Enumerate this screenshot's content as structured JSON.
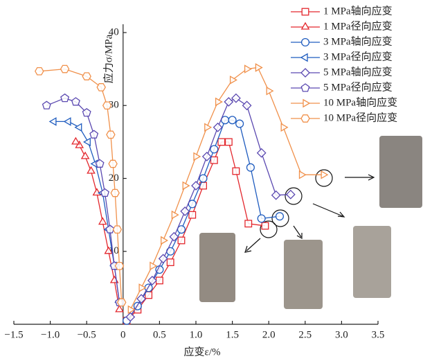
{
  "chart_data": {
    "type": "line",
    "xlabel": "应变ε/%",
    "ylabel": "应力σ/MPa",
    "xlim": [
      -1.5,
      3.5
    ],
    "ylim": [
      0,
      40
    ],
    "xticks": [
      {
        "value": -1.5,
        "label": "−1.5"
      },
      {
        "value": -1,
        "label": "−1.0"
      },
      {
        "value": -0.5,
        "label": "−0.5"
      },
      0,
      0.5,
      {
        "value": 1,
        "label": "1.0"
      },
      1.5,
      {
        "value": 2,
        "label": "2.0"
      },
      2.5,
      {
        "value": 3,
        "label": "3.0"
      },
      3.5
    ],
    "yticks": [
      10,
      20,
      30,
      40
    ],
    "series": [
      {
        "name": "1 MPa轴向应变",
        "color": "#e3262c",
        "marker": "square",
        "x": [
          0.05,
          0.2,
          0.35,
          0.5,
          0.65,
          0.8,
          0.95,
          1.1,
          1.25,
          1.35,
          1.45,
          1.55,
          1.72,
          1.95
        ],
        "values": [
          0.5,
          2,
          4,
          6,
          8.5,
          11.5,
          15,
          19,
          22.5,
          25,
          25,
          21,
          13.8,
          13.5
        ]
      },
      {
        "name": "1 MPa径向应变",
        "color": "#e3262c",
        "marker": "triangle",
        "x": [
          -0.05,
          -0.12,
          -0.2,
          -0.28,
          -0.36,
          -0.44,
          -0.52,
          -0.6,
          -0.65
        ],
        "values": [
          2,
          6,
          10,
          14,
          18,
          21,
          23,
          24.5,
          25
        ]
      },
      {
        "name": "3 MPa轴向应变",
        "color": "#1f5cbf",
        "marker": "circle",
        "x": [
          0.05,
          0.2,
          0.35,
          0.5,
          0.65,
          0.8,
          0.95,
          1.1,
          1.25,
          1.4,
          1.5,
          1.6,
          1.75,
          1.9,
          2.15
        ],
        "values": [
          0.5,
          2.5,
          5,
          7.5,
          10,
          13,
          16.5,
          20,
          24,
          28,
          28,
          27.5,
          21.5,
          14.5,
          14.8
        ]
      },
      {
        "name": "3 MPa径向应变",
        "color": "#1f5cbf",
        "marker": "ltriangle",
        "x": [
          -0.05,
          -0.12,
          -0.2,
          -0.28,
          -0.38,
          -0.48,
          -0.6,
          -0.75,
          -0.95
        ],
        "values": [
          3,
          8,
          13,
          18,
          22,
          25,
          27,
          27.8,
          27.8
        ]
      },
      {
        "name": "5 MPa轴向应变",
        "color": "#5a48b0",
        "marker": "diamond",
        "x": [
          0.1,
          0.25,
          0.4,
          0.55,
          0.7,
          0.85,
          1.0,
          1.15,
          1.3,
          1.45,
          1.55,
          1.7,
          1.9,
          2.1,
          2.3
        ],
        "values": [
          1,
          3.5,
          6,
          9,
          12,
          15.5,
          19,
          23,
          27,
          30.5,
          31,
          30,
          23.5,
          17.7,
          17.8
        ]
      },
      {
        "name": "5 MPa径向应变",
        "color": "#5a48b0",
        "marker": "pentagon",
        "x": [
          -0.05,
          -0.12,
          -0.18,
          -0.25,
          -0.32,
          -0.4,
          -0.5,
          -0.65,
          -0.8,
          -1.05
        ],
        "values": [
          3,
          8,
          13,
          18,
          22,
          26,
          29,
          30.5,
          31,
          30
        ]
      },
      {
        "name": "10 MPa轴向应变",
        "color": "#f0904a",
        "marker": "rtriangle",
        "x": [
          0.1,
          0.25,
          0.4,
          0.55,
          0.7,
          0.85,
          1.0,
          1.15,
          1.3,
          1.5,
          1.7,
          1.85,
          2.0,
          2.2,
          2.45,
          2.75
        ],
        "values": [
          2,
          5,
          8,
          11.5,
          15,
          19,
          23,
          27,
          30.5,
          33.5,
          35,
          35.2,
          32,
          27,
          20.5,
          20.5
        ]
      },
      {
        "name": "10 MPa径向应变",
        "color": "#f0904a",
        "marker": "hexagon",
        "x": [
          -0.02,
          -0.05,
          -0.08,
          -0.11,
          -0.14,
          -0.17,
          -0.22,
          -0.3,
          -0.5,
          -0.8,
          -1.15
        ],
        "values": [
          3,
          8,
          13,
          18,
          22,
          26,
          30,
          32.5,
          34,
          35,
          34.7
        ]
      }
    ]
  }
}
